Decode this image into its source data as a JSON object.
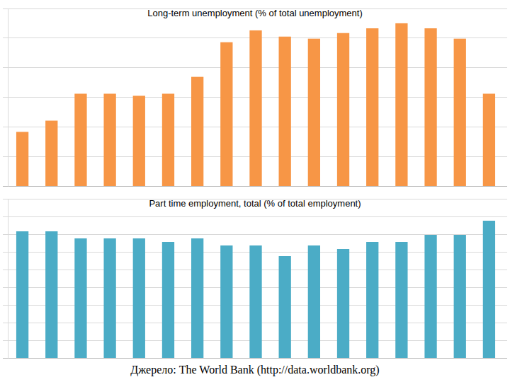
{
  "chart_data": [
    {
      "type": "bar",
      "title": "Long-term unemployment (% of total unemployment)",
      "categories": [
        null,
        null,
        null,
        null,
        null,
        null,
        null,
        null,
        null,
        null,
        null,
        null,
        null,
        null,
        null,
        null,
        null
      ],
      "values": [
        18.3,
        22.1,
        31.2,
        31.2,
        30.5,
        31.2,
        36.9,
        48.6,
        52.6,
        50.5,
        49.8,
        51.7,
        53.3,
        55.0,
        53.3,
        49.8,
        31.2
      ],
      "color": "#f79646",
      "ylim": [
        0,
        60
      ],
      "yticks": [
        0,
        10,
        20,
        30,
        40,
        50,
        60
      ],
      "grid": true,
      "tick_labels": false
    },
    {
      "type": "bar",
      "title": "Part time employment, total (% of total employment)",
      "categories": [
        null,
        null,
        null,
        null,
        null,
        null,
        null,
        null,
        null,
        null,
        null,
        null,
        null,
        null,
        null,
        null,
        null
      ],
      "values": [
        7.16,
        7.16,
        6.76,
        6.76,
        6.76,
        6.56,
        6.76,
        6.36,
        6.36,
        5.76,
        6.36,
        6.16,
        6.56,
        6.56,
        6.96,
        6.96,
        7.76
      ],
      "color": "#4bacc6",
      "ylim": [
        0,
        9
      ],
      "yticks": [
        0,
        1,
        2,
        3,
        4,
        5,
        6,
        7,
        8,
        9
      ],
      "grid": true,
      "tick_labels": false
    }
  ],
  "source": "Джерело: The World Bank (http://data.worldbank.org)"
}
